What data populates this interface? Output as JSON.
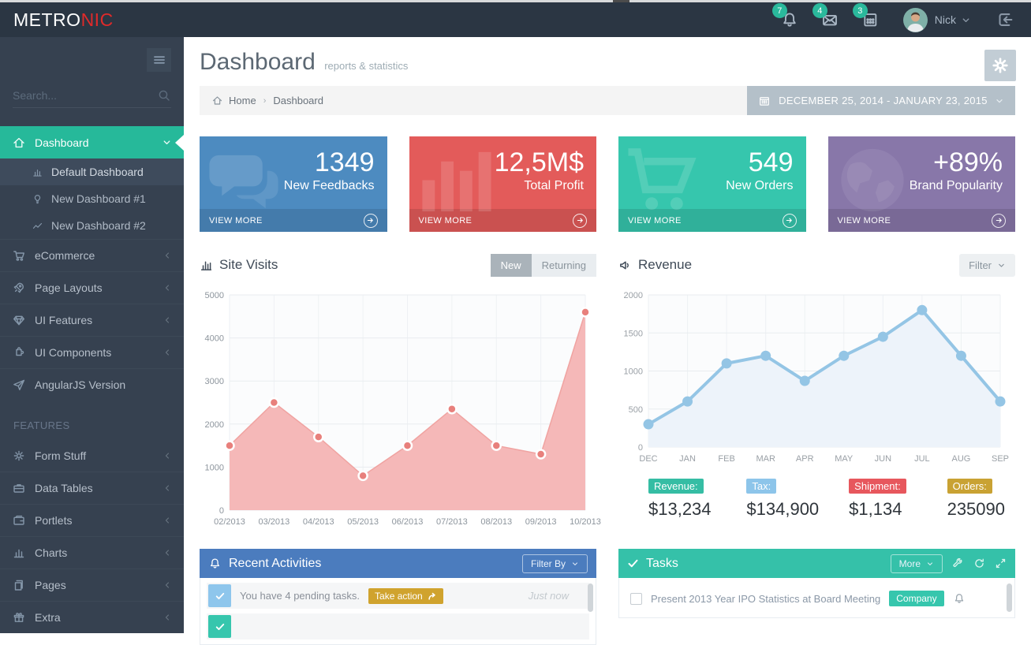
{
  "topbar": {
    "brand": {
      "metro": "METRO",
      "nic": "NIC"
    },
    "notifications_count": "7",
    "messages_count": "4",
    "todos_count": "3",
    "user": {
      "name": "Nick"
    },
    "icons": [
      "bell-icon",
      "envelope-icon",
      "todo-grid-icon",
      "avatar",
      "chevron-down-icon",
      "logout-icon"
    ]
  },
  "sidebar": {
    "search_placeholder": "Search...",
    "features_heading": "FEATURES",
    "menu": [
      {
        "label": "Dashboard",
        "icon": "home-icon",
        "active": true
      },
      {
        "label": "eCommerce",
        "icon": "cart-icon"
      },
      {
        "label": "Page Layouts",
        "icon": "rocket-icon"
      },
      {
        "label": "UI Features",
        "icon": "diamond-icon"
      },
      {
        "label": "UI Components",
        "icon": "puzzle-icon"
      },
      {
        "label": "AngularJS Version",
        "icon": "paper-plane-icon"
      },
      {
        "label": "Form Stuff",
        "icon": "gear-icon"
      },
      {
        "label": "Data Tables",
        "icon": "briefcase-icon"
      },
      {
        "label": "Portlets",
        "icon": "wallet-icon"
      },
      {
        "label": "Charts",
        "icon": "bar-chart-icon"
      },
      {
        "label": "Pages",
        "icon": "pages-icon"
      },
      {
        "label": "Extra",
        "icon": "gift-icon"
      }
    ],
    "submenu": [
      {
        "label": "Default Dashboard",
        "icon": "bar-chart-icon",
        "selected": true
      },
      {
        "label": "New Dashboard #1",
        "icon": "lightbulb-icon"
      },
      {
        "label": "New Dashboard #2",
        "icon": "trend-line-icon"
      }
    ]
  },
  "header": {
    "title": "Dashboard",
    "subtitle": "reports & statistics",
    "breadcrumb": {
      "home": "Home",
      "current": "Dashboard"
    },
    "date_range": "DECEMBER 25, 2014 - JANUARY 23, 2015"
  },
  "tiles": [
    {
      "value": "1349",
      "label": "New Feedbacks",
      "action": "VIEW MORE",
      "color": "#4d8bc0",
      "icon": "chat-bubbles-icon"
    },
    {
      "value": "12,5M$",
      "label": "Total Profit",
      "action": "VIEW MORE",
      "color": "#e35b5a",
      "icon": "bar-chart-icon"
    },
    {
      "value": "549",
      "label": "New Orders",
      "action": "VIEW MORE",
      "color": "#36c6ad",
      "icon": "cart-icon"
    },
    {
      "value": "+89%",
      "label": "Brand Popularity",
      "action": "VIEW MORE",
      "color": "#8877a9",
      "icon": "globe-icon"
    }
  ],
  "site_visits": {
    "title": "Site Visits",
    "toggle": [
      "New",
      "Returning"
    ],
    "active_toggle": "New"
  },
  "revenue": {
    "title": "Revenue",
    "filter_label": "Filter",
    "stats": [
      {
        "label": "Revenue:",
        "value": "$13,234",
        "color": "#35bda4"
      },
      {
        "label": "Tax:",
        "value": "$134,900",
        "color": "#8dc5ea"
      },
      {
        "label": "Shipment:",
        "value": "$1,134",
        "color": "#e7575d"
      },
      {
        "label": "Orders:",
        "value": "235090",
        "color": "#c9a233"
      }
    ]
  },
  "activities": {
    "title": "Recent Activities",
    "filter_label": "Filter By",
    "items": [
      {
        "text": "You have 4 pending tasks.",
        "action": "Take action",
        "time": "Just now",
        "icon": "check-icon",
        "icon_color": "blue"
      }
    ]
  },
  "tasks": {
    "title": "Tasks",
    "more_label": "More",
    "tools": [
      "wrench-icon",
      "refresh-icon",
      "expand-icon"
    ],
    "items": [
      {
        "text": "Present 2013 Year IPO Statistics at Board Meeting",
        "badge": "Company",
        "badge_color": "#36c6ad"
      }
    ]
  },
  "chart_data": [
    {
      "type": "area",
      "title": "Site Visits",
      "categories": [
        "02/2013",
        "03/2013",
        "04/2013",
        "05/2013",
        "06/2013",
        "07/2013",
        "08/2013",
        "09/2013",
        "10/2013"
      ],
      "values": [
        1500,
        2500,
        1700,
        800,
        1500,
        2350,
        1500,
        1300,
        4600
      ],
      "ylim": [
        0,
        5000
      ],
      "ytick": 1000,
      "grid": true,
      "line_width": 1.5,
      "marker_radius": 5.5,
      "colors": {
        "area": "#f5b8b8",
        "line": "#f0a3a1",
        "marker": "#e8807c",
        "marker_ring": "#ffffff",
        "grid": "#e9edf0",
        "grid_v": "#eef1f4",
        "plot_bg": "#fbfcfd",
        "tick": "#8d959d"
      }
    },
    {
      "type": "line",
      "title": "Revenue",
      "categories": [
        "DEC",
        "JAN",
        "FEB",
        "MAR",
        "APR",
        "MAY",
        "JUN",
        "JUL",
        "AUG",
        "SEP"
      ],
      "values": [
        300,
        600,
        1100,
        1200,
        870,
        1200,
        1450,
        1800,
        1200,
        600
      ],
      "ylim": [
        0,
        2000
      ],
      "ytick": 500,
      "grid": true,
      "line_width": 4,
      "marker_radius": 6.5,
      "colors": {
        "area": "#edf3fa",
        "line": "#94c5e5",
        "marker": "#94c5e5",
        "marker_ring": null,
        "grid": "#e9edf0",
        "grid_v": "#eef1f4",
        "plot_bg": "#fbfcfd",
        "tick": "#9aa0a6"
      }
    }
  ]
}
